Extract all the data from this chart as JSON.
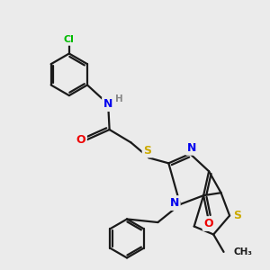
{
  "background_color": "#ebebeb",
  "bond_color": "#1a1a1a",
  "atom_colors": {
    "C": "#1a1a1a",
    "N": "#0000ee",
    "O": "#ee0000",
    "S": "#ccaa00",
    "Cl": "#00bb00",
    "H": "#888888"
  },
  "figsize": [
    3.0,
    3.0
  ],
  "dpi": 100
}
